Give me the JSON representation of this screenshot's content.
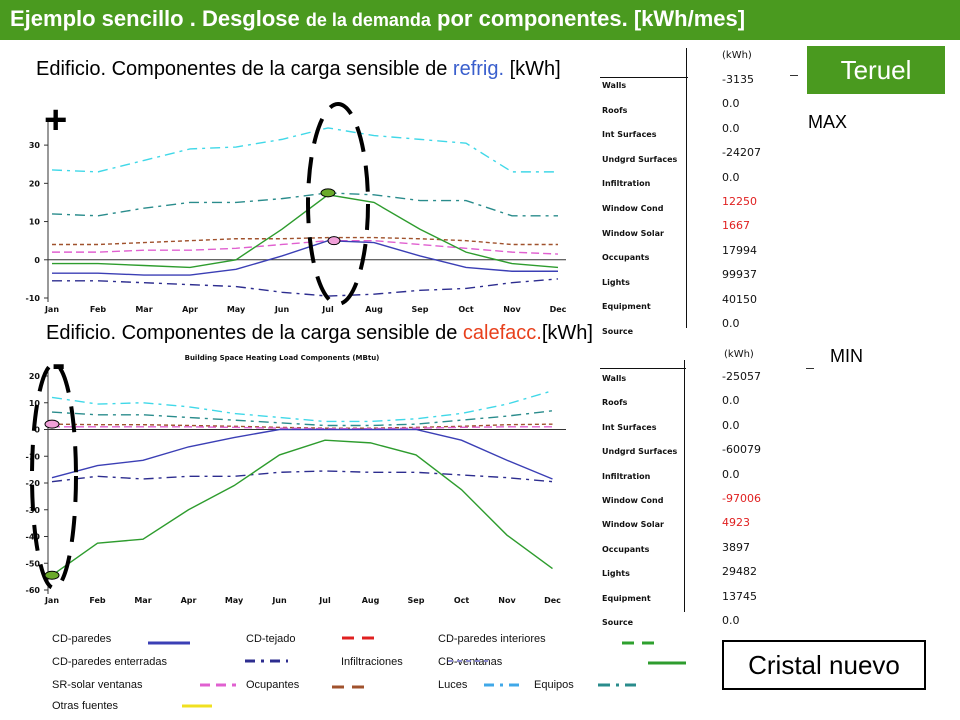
{
  "title": {
    "part1": "Ejemplo sencillo . Desglose ",
    "part2": "de la demanda",
    "part3": " por componentes. [kWh/mes]"
  },
  "cooling_heading": {
    "prefix": "Edificio. Componentes de la carga sensible de ",
    "highlight": "refrig.",
    "suffix": " [kWh]"
  },
  "heating_heading": {
    "prefix": "Edificio. Componentes de la carga sensible de ",
    "highlight": "calefacc.",
    "suffix": "[kWh]"
  },
  "teruel_label": "Teruel",
  "max_label": "MAX",
  "min_label": "MIN",
  "cristal_label": "Cristal nuevo",
  "plus_sign": "+",
  "minus_sign": "-",
  "cooling_table": {
    "unit": "(kWh)",
    "rows": [
      "Walls",
      "Roofs",
      "Int Surfaces",
      "Undgrd Surfaces",
      "Infiltration",
      "Window Cond",
      "Window Solar",
      "Occupants",
      "Lights",
      "Equipment",
      "Source"
    ],
    "values": [
      "-3135",
      "0.0",
      "0.0",
      "-24207",
      "0.0",
      "12250",
      "1667",
      "17994",
      "99937",
      "40150",
      "0.0"
    ]
  },
  "heating_table": {
    "unit": "(kWh)",
    "rows": [
      "Walls",
      "Roofs",
      "Int Surfaces",
      "Undgrd Surfaces",
      "Infiltration",
      "Window Cond",
      "Window Solar",
      "Occupants",
      "Lights",
      "Equipment",
      "Source"
    ],
    "values": [
      "-25057",
      "0.0",
      "0.0",
      "-60079",
      "0.0",
      "-97006",
      "4923",
      "3897",
      "29482",
      "13745",
      "0.0"
    ]
  },
  "legend": {
    "walls": "CD-paredes",
    "roof": "CD-tejado",
    "interior_walls": "CD-paredes interiores",
    "underground_walls": "CD-paredes enterradas",
    "infiltration": "Infiltraciones",
    "windows": "CD-ventanas",
    "solar_windows": "SR-solar ventanas",
    "occupants": "Ocupantes",
    "lights": "Luces",
    "equipment": "Equipos",
    "other": "Otras fuentes"
  },
  "colors": {
    "brand_green": "#4a9a1f",
    "walls": "#3b3fb5",
    "underground": "#2d2d8f",
    "windows": "#2e9c2e",
    "solar": "#e060d0",
    "occupants": "#a0522d",
    "lights": "#40d8e8",
    "equipment": "#2a8c8c",
    "roof": "#e02020",
    "interior": "#2ea02e",
    "other": "#f0e020"
  },
  "chart_data": [
    {
      "type": "line",
      "title": "",
      "x": [
        "Jan",
        "Feb",
        "Mar",
        "Apr",
        "May",
        "Jun",
        "Jul",
        "Aug",
        "Sep",
        "Oct",
        "Nov",
        "Dec"
      ],
      "ylim": [
        -10,
        35
      ],
      "yticks": [
        -10,
        0,
        10,
        20,
        30
      ],
      "series": [
        {
          "name": "Luces",
          "values": [
            23.5,
            23,
            26,
            29,
            29.5,
            31.5,
            34.5,
            32.5,
            31.5,
            30.5,
            23,
            23
          ]
        },
        {
          "name": "Equipos",
          "values": [
            12,
            11.5,
            13.5,
            15,
            15,
            16,
            17.5,
            17,
            15.5,
            15.5,
            11.5,
            11.5
          ]
        },
        {
          "name": "Ocupantes",
          "values": [
            4,
            4,
            4.5,
            5,
            5.5,
            5.5,
            5.8,
            5.8,
            5.5,
            5,
            4,
            4
          ]
        },
        {
          "name": "SR-solar ventanas",
          "values": [
            2,
            2,
            2.5,
            2.5,
            3,
            4,
            5,
            5,
            4,
            3,
            2,
            1.5
          ]
        },
        {
          "name": "CD-ventanas",
          "values": [
            -1,
            -1,
            -1.5,
            -2,
            0,
            8,
            17,
            15,
            8,
            2,
            -1,
            -2
          ]
        },
        {
          "name": "CD-paredes",
          "values": [
            -3.5,
            -3.5,
            -4,
            -4,
            -2.5,
            1,
            5,
            4.5,
            1,
            -2,
            -3,
            -3
          ]
        },
        {
          "name": "CD-paredes enterradas",
          "values": [
            -5.5,
            -5.5,
            -6,
            -6.5,
            -7,
            -8.5,
            -9.5,
            -9,
            -8,
            -7.5,
            -6,
            -5
          ]
        }
      ]
    },
    {
      "type": "line",
      "title": "Building Space Heating Load Components (MBtu)",
      "x": [
        "Jan",
        "Feb",
        "Mar",
        "Apr",
        "May",
        "Jun",
        "Jul",
        "Aug",
        "Sep",
        "Oct",
        "Nov",
        "Dec"
      ],
      "ylim": [
        -60,
        20
      ],
      "yticks": [
        -60,
        -50,
        -40,
        -30,
        -20,
        -10,
        0,
        10,
        20
      ],
      "series": [
        {
          "name": "Luces",
          "values": [
            12,
            9.5,
            10,
            8.5,
            6,
            4.5,
            3,
            3,
            4,
            6,
            9.5,
            14.5
          ]
        },
        {
          "name": "Equipos",
          "values": [
            6.5,
            5.5,
            5.5,
            4.5,
            3.5,
            2.5,
            1.5,
            1.5,
            2,
            3.5,
            5,
            7
          ]
        },
        {
          "name": "Ocupantes",
          "values": [
            2,
            1.8,
            1.8,
            1.5,
            1.2,
            0.8,
            0.5,
            0.5,
            0.8,
            1.2,
            1.8,
            2
          ]
        },
        {
          "name": "SR-solar ventanas",
          "values": [
            1,
            1,
            1,
            1,
            0.8,
            0.5,
            0.3,
            0.3,
            0.5,
            0.8,
            1,
            1
          ]
        },
        {
          "name": "CD-paredes",
          "values": [
            -18,
            -13.5,
            -11.5,
            -6.5,
            -3,
            0,
            0,
            0,
            0,
            -4,
            -11.5,
            -18.5
          ]
        },
        {
          "name": "CD-paredes enterradas",
          "values": [
            -19.5,
            -17.5,
            -18.5,
            -17.5,
            -17.5,
            -16,
            -15.5,
            -16,
            -16,
            -17,
            -18,
            -19.5
          ]
        },
        {
          "name": "CD-ventanas",
          "values": [
            -54.5,
            -42.5,
            -41,
            -30,
            -21,
            -9.5,
            -4,
            -5,
            -9.5,
            -22.5,
            -39.5,
            -52
          ]
        }
      ]
    }
  ]
}
